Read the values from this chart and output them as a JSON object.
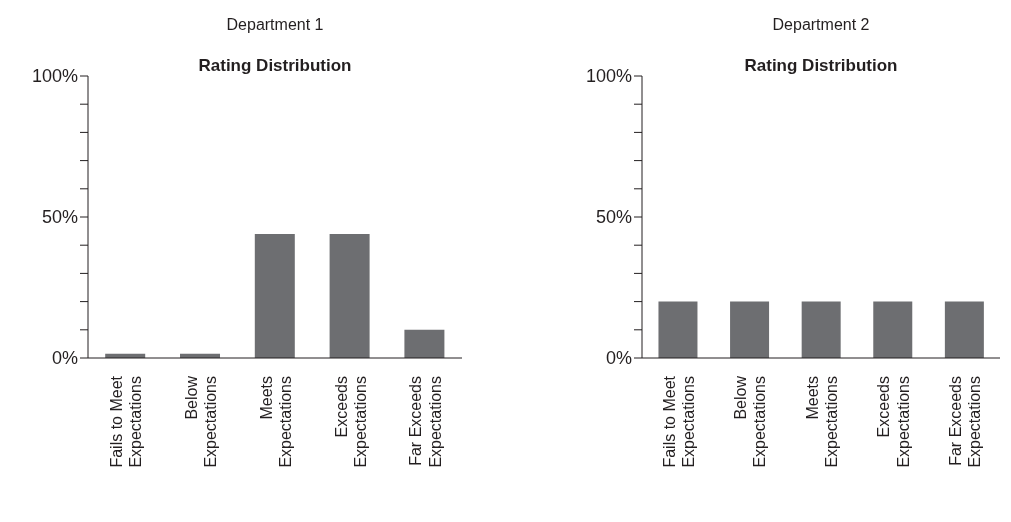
{
  "chart_data": [
    {
      "type": "bar",
      "subtitle": "Department 1",
      "title": "Rating Distribution",
      "categories": [
        "Fails to Meet Expectations",
        "Below Expectations",
        "Meets Expectations",
        "Exceeds Expectations",
        "Far Exceeds Expectations"
      ],
      "values": [
        1.5,
        1.5,
        44,
        44,
        10
      ],
      "color": "#6d6e71",
      "ylim": [
        0,
        100
      ],
      "yticks": [
        {
          "value": 0,
          "label": "0%"
        },
        {
          "value": 10,
          "label": null
        },
        {
          "value": 20,
          "label": null
        },
        {
          "value": 30,
          "label": null
        },
        {
          "value": 40,
          "label": null
        },
        {
          "value": 50,
          "label": "50%"
        },
        {
          "value": 60,
          "label": null
        },
        {
          "value": 70,
          "label": null
        },
        {
          "value": 80,
          "label": null
        },
        {
          "value": 90,
          "label": null
        },
        {
          "value": 100,
          "label": "100%"
        }
      ],
      "grid": false,
      "legend": false
    },
    {
      "type": "bar",
      "subtitle": "Department 2",
      "title": "Rating Distribution",
      "categories": [
        "Fails to Meet Expectations",
        "Below Expectations",
        "Meets Expectations",
        "Exceeds Expectations",
        "Far Exceeds Expectations"
      ],
      "values": [
        20,
        20,
        20,
        20,
        20
      ],
      "color": "#6d6e71",
      "ylim": [
        0,
        100
      ],
      "yticks": [
        {
          "value": 0,
          "label": "0%"
        },
        {
          "value": 10,
          "label": null
        },
        {
          "value": 20,
          "label": null
        },
        {
          "value": 30,
          "label": null
        },
        {
          "value": 40,
          "label": null
        },
        {
          "value": 50,
          "label": "50%"
        },
        {
          "value": 60,
          "label": null
        },
        {
          "value": 70,
          "label": null
        },
        {
          "value": 80,
          "label": null
        },
        {
          "value": 90,
          "label": null
        },
        {
          "value": 100,
          "label": "100%"
        }
      ],
      "grid": false,
      "legend": false
    }
  ]
}
